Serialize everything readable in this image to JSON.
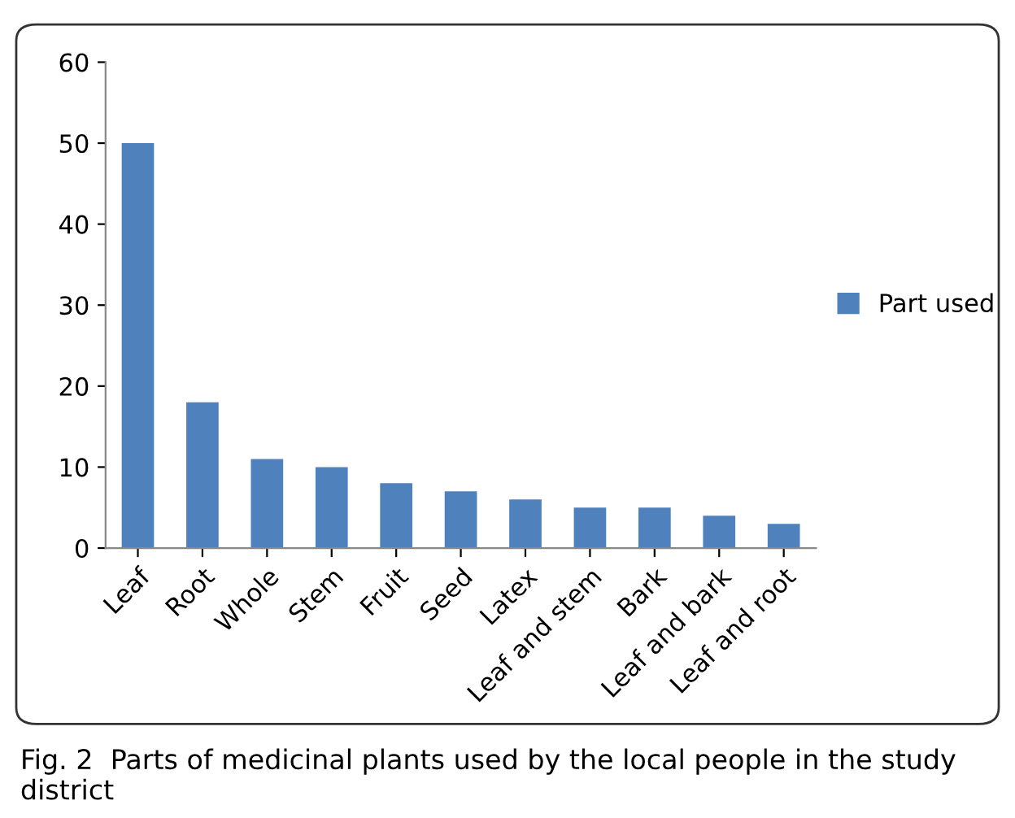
{
  "chart_data": {
    "type": "bar",
    "categories": [
      "Leaf",
      "Root",
      "Whole",
      "Stem",
      "Fruit",
      "Seed",
      "Latex",
      "Leaf and stem",
      "Bark",
      "Leaf and bark",
      "Leaf and root"
    ],
    "series": [
      {
        "name": "Part used",
        "color": "#4f81bd",
        "values": [
          50,
          18,
          11,
          10,
          8,
          7,
          6,
          5,
          5,
          4,
          3
        ]
      }
    ],
    "ylim": [
      0,
      60
    ],
    "yticks": [
      0,
      10,
      20,
      30,
      40,
      50,
      60
    ],
    "grid": false,
    "legend": "right",
    "annotations": [
      "Fig. 2  Parts of medicinal plants used by the local people in the study district"
    ]
  }
}
